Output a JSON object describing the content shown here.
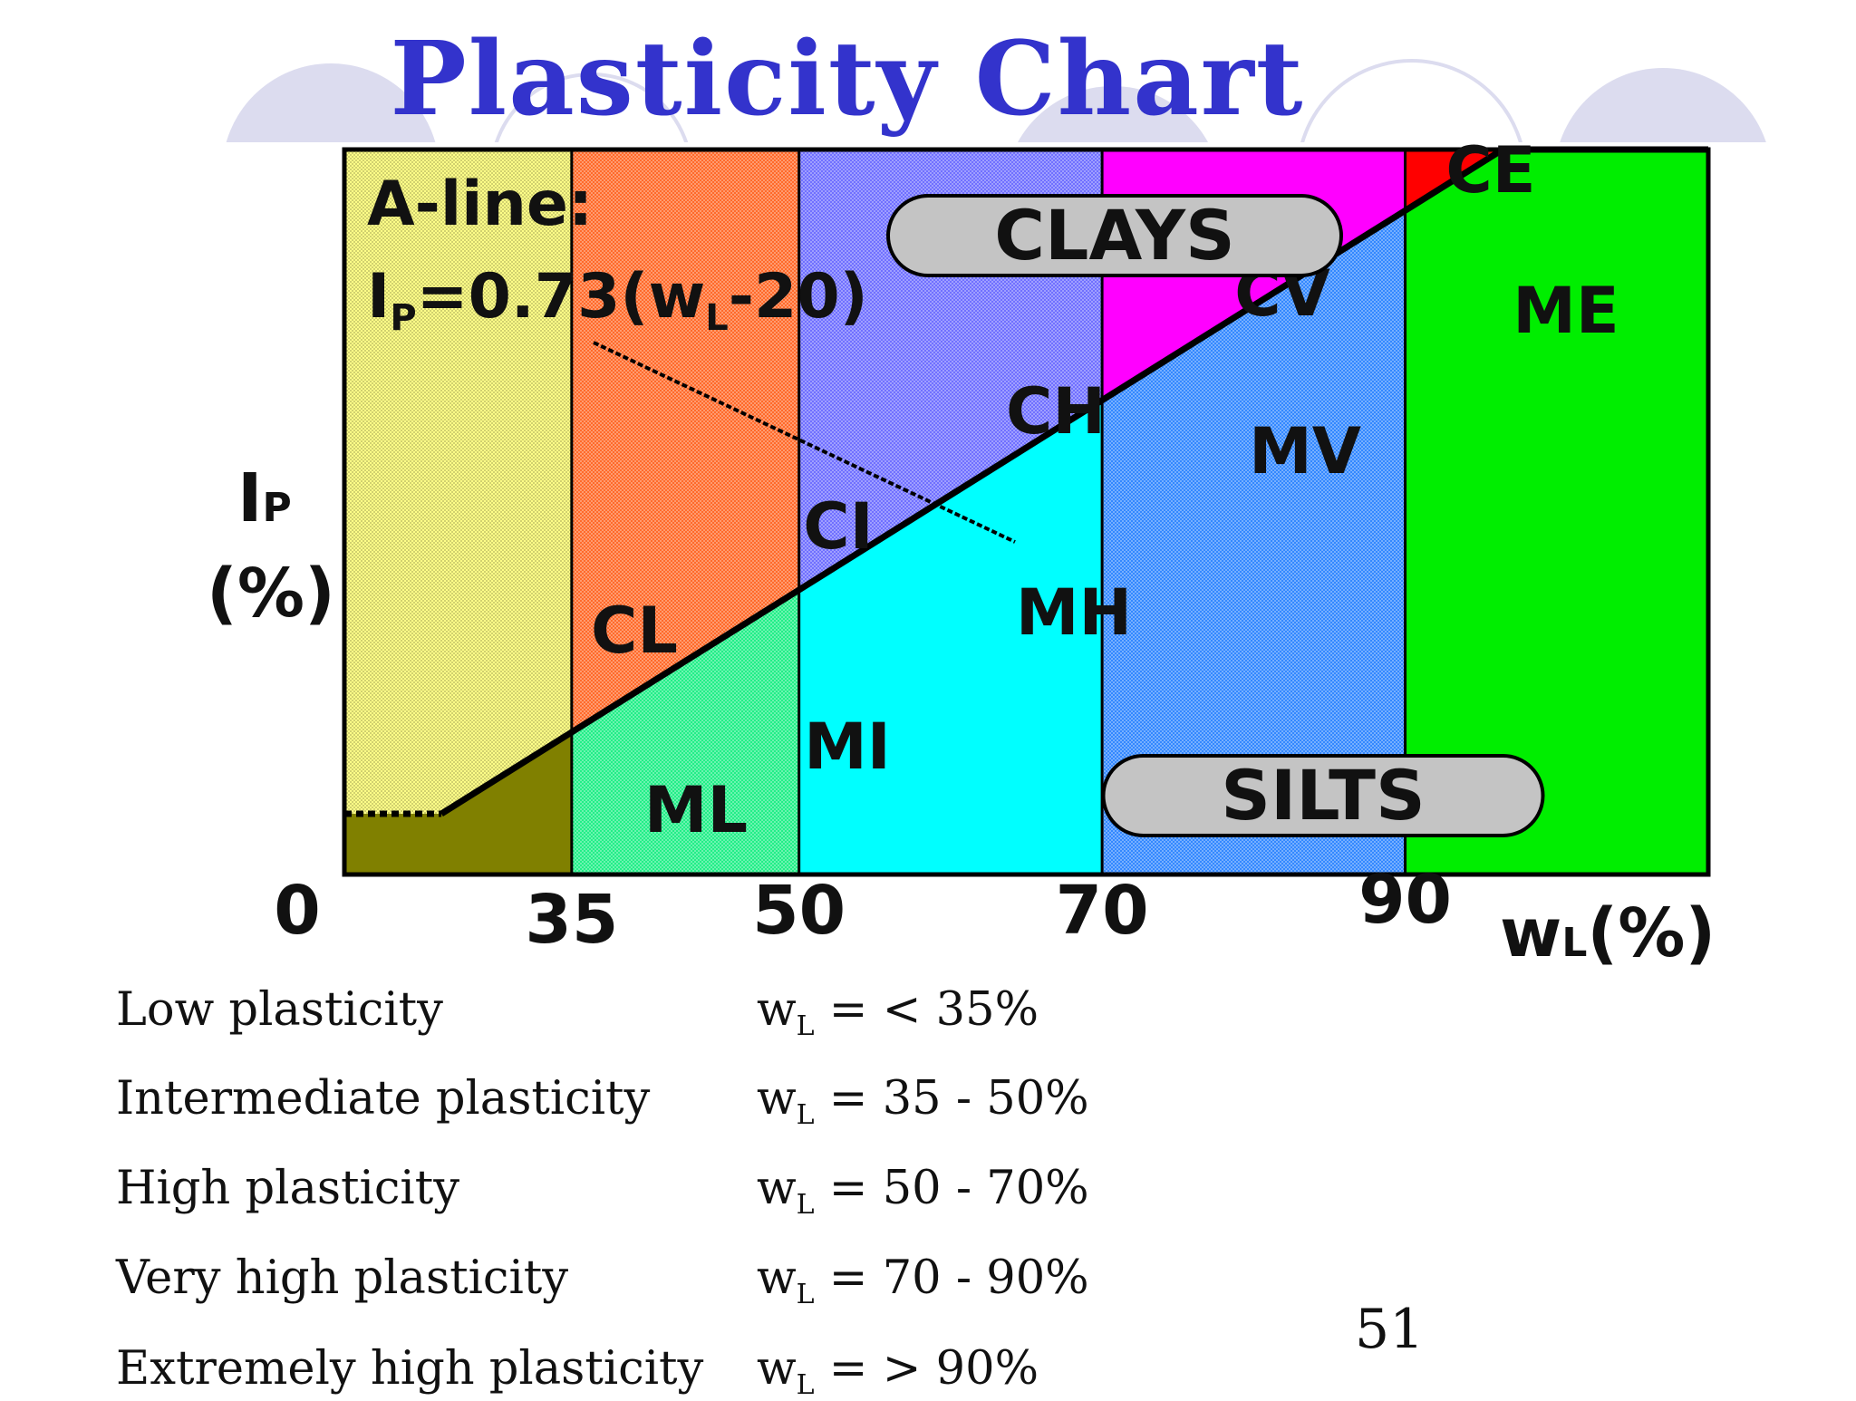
{
  "title": "Plasticity Chart",
  "chart_data": {
    "type": "area",
    "xlabel_var": "w",
    "xlabel_sub": "L",
    "xlabel_unit": "(%)",
    "ylabel_var": "I",
    "ylabel_sub": "P",
    "ylabel_unit": "(%)",
    "origin_label": "0",
    "x_ticks": [
      35,
      50,
      70,
      90
    ],
    "xlim": [
      20,
      110
    ],
    "a_line": {
      "label": "A-line:",
      "eq_var": "I",
      "eq_sub": "P",
      "eq_mid": "=0.73(w",
      "eq_sub2": "L",
      "eq_end": "-20)",
      "slope": 0.73,
      "offset": 20
    },
    "zones": [
      {
        "code": "CL",
        "group": "clay",
        "x": [
          20,
          35
        ]
      },
      {
        "code": "CI",
        "group": "clay",
        "x": [
          35,
          50
        ]
      },
      {
        "code": "CH",
        "group": "clay",
        "x": [
          50,
          70
        ]
      },
      {
        "code": "CV",
        "group": "clay",
        "x": [
          70,
          90
        ]
      },
      {
        "code": "CE",
        "group": "clay",
        "x": [
          90,
          110
        ]
      },
      {
        "code": "ML",
        "group": "silt",
        "x": [
          20,
          35
        ]
      },
      {
        "code": "MI",
        "group": "silt",
        "x": [
          35,
          50
        ]
      },
      {
        "code": "MH",
        "group": "silt",
        "x": [
          50,
          70
        ]
      },
      {
        "code": "MV",
        "group": "silt",
        "x": [
          70,
          90
        ]
      },
      {
        "code": "ME",
        "group": "silt",
        "x": [
          90,
          110
        ]
      }
    ],
    "group_labels": {
      "clay": "CLAYS",
      "silt": "SILTS"
    },
    "colors": {
      "CL": "#ffff88",
      "CI": "#ff6a2a",
      "CH": "#7070ff",
      "CV": "#ff00ff",
      "CE": "#ff0000",
      "ML": "#808000",
      "MI": "#22ee88",
      "MH": "#00ffff",
      "MV": "#3388ff",
      "ME": "#00ee00"
    }
  },
  "table": {
    "rows": [
      {
        "label": "Low plasticity",
        "var": "w",
        "sub": "L",
        "value": "= < 35%"
      },
      {
        "label": "Intermediate plasticity",
        "var": "w",
        "sub": "L",
        "value": "= 35 - 50%"
      },
      {
        "label": "High plasticity",
        "var": "w",
        "sub": "L",
        "value": "= 50 - 70%"
      },
      {
        "label": "Very high plasticity",
        "var": "w",
        "sub": "L",
        "value": "= 70 - 90%"
      },
      {
        "label": "Extremely high plasticity",
        "var": "w",
        "sub": "L",
        "value": "= > 90%"
      }
    ]
  },
  "page_number": "51"
}
